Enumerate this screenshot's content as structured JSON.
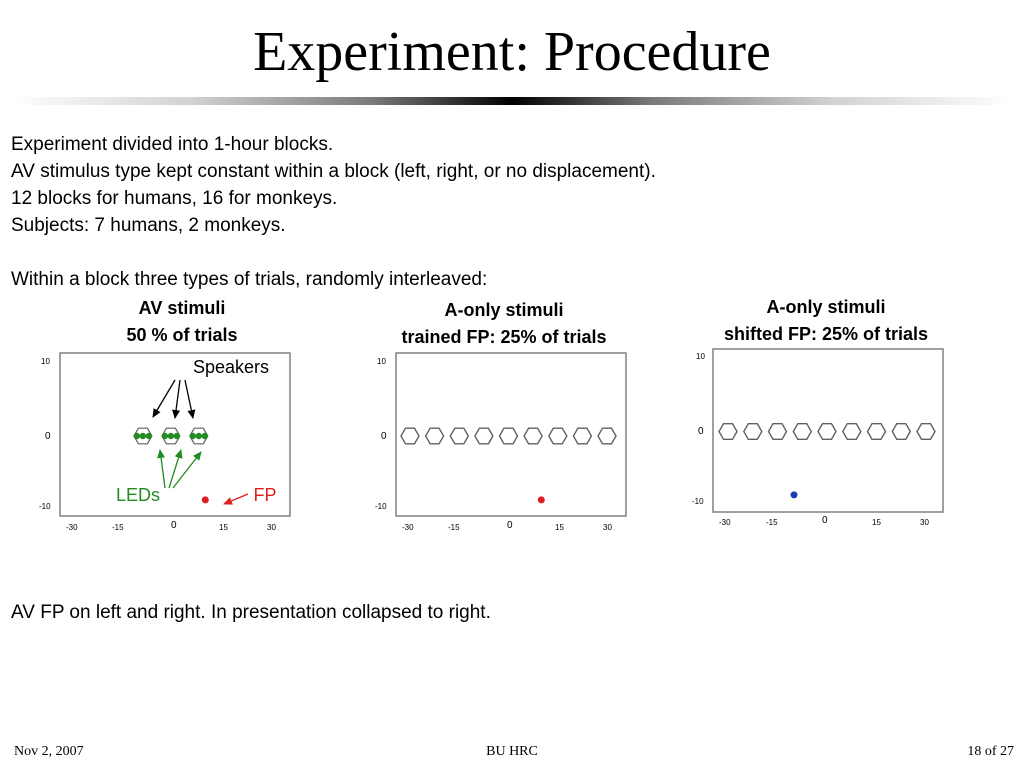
{
  "title": "Experiment: Procedure",
  "bullets": [
    "Experiment divided into 1-hour blocks.",
    "AV stimulus type kept constant within a block (left, right, or no displacement).",
    "12 blocks for humans, 16 for monkeys.",
    "Subjects: 7 humans, 2 monkeys."
  ],
  "intro": "Within a block three types of trials, randomly interleaved:",
  "colors": {
    "led": "#228b22",
    "fp_trained": "#e02020",
    "fp_shifted": "#1a3cb0",
    "arrow_speakers": "#000000",
    "arrow_leds": "#228b22",
    "arrow_fp": "#e02020"
  },
  "axis": {
    "x_ticks": [
      "-30",
      "-15",
      "0",
      "15",
      "30"
    ],
    "y_ticks": [
      "10",
      "0",
      "-10"
    ]
  },
  "panels": [
    {
      "heading_line1": "AV stimuli",
      "heading_line2": "50 % of trials",
      "speaker_x": [
        -9,
        -0.5,
        8
      ],
      "leds_per_speaker": 3,
      "fp": {
        "x": 10,
        "y": -9,
        "color": "fp_trained"
      },
      "annotations": {
        "speakers": "Speakers",
        "leds": "LEDs",
        "fp": "FP"
      }
    },
    {
      "heading_line1": "A-only stimuli",
      "heading_line2": "trained FP: 25% of trials",
      "speaker_x": [
        -30,
        -22.5,
        -15,
        -7.5,
        0,
        7.5,
        15,
        22.5,
        30
      ],
      "leds_per_speaker": 0,
      "fp": {
        "x": 10,
        "y": -9,
        "color": "fp_trained"
      }
    },
    {
      "heading_line1": "A-only stimuli",
      "heading_line2": "shifted FP: 25% of trials",
      "speaker_x": [
        -30,
        -22.5,
        -15,
        -7.5,
        0,
        7.5,
        15,
        22.5,
        30
      ],
      "leds_per_speaker": 0,
      "fp": {
        "x": -10,
        "y": -9,
        "color": "fp_shifted"
      }
    }
  ],
  "footnote": "AV FP on left and right. In presentation collapsed to right.",
  "footer": {
    "date": "Nov  2, 2007",
    "center": "BU HRC",
    "page": "18 of 27"
  }
}
